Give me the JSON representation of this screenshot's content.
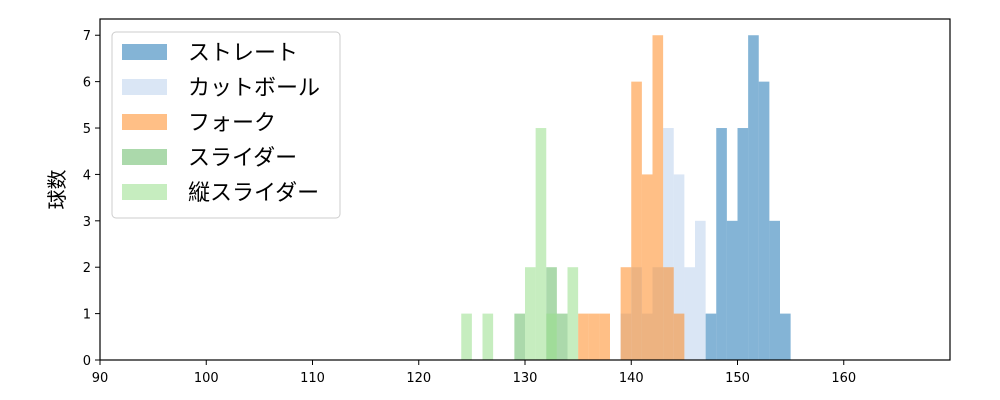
{
  "chart_data": {
    "type": "histogram",
    "ylabel": "球数",
    "xlabel": "",
    "xlim": [
      90,
      170
    ],
    "ylim": [
      0,
      7.35
    ],
    "xticks": [
      90,
      100,
      110,
      120,
      130,
      140,
      150,
      160
    ],
    "yticks": [
      0,
      1,
      2,
      3,
      4,
      5,
      6,
      7
    ],
    "grid": false,
    "legend_position": "top-left",
    "series": [
      {
        "name": "ストレート",
        "color": "#1f77b4",
        "opacity": 0.55,
        "bins": [
          [
            147,
            1
          ],
          [
            148,
            5
          ],
          [
            149,
            3
          ],
          [
            150,
            5
          ],
          [
            151,
            7
          ],
          [
            152,
            6
          ],
          [
            153,
            3
          ],
          [
            154,
            1
          ]
        ]
      },
      {
        "name": "カットボール",
        "color": "#aec7e8",
        "opacity": 0.45,
        "bins": [
          [
            139,
            1
          ],
          [
            140,
            2
          ],
          [
            141,
            1
          ],
          [
            142,
            2
          ],
          [
            143,
            5
          ],
          [
            144,
            4
          ],
          [
            145,
            2
          ],
          [
            146,
            3
          ]
        ]
      },
      {
        "name": "フォーク",
        "color": "#ff7f0e",
        "opacity": 0.5,
        "bins": [
          [
            135,
            1
          ],
          [
            136,
            1
          ],
          [
            137,
            1
          ],
          [
            138,
            0
          ],
          [
            139,
            2
          ],
          [
            140,
            6
          ],
          [
            141,
            4
          ],
          [
            142,
            7
          ],
          [
            143,
            2
          ],
          [
            144,
            1
          ]
        ]
      },
      {
        "name": "スライダー",
        "color": "#2ca02c",
        "opacity": 0.4,
        "bins": [
          [
            129,
            1
          ],
          [
            130,
            0
          ],
          [
            131,
            0
          ],
          [
            132,
            2
          ],
          [
            133,
            1
          ]
        ]
      },
      {
        "name": "縦スライダー",
        "color": "#98df8a",
        "opacity": 0.55,
        "bins": [
          [
            124,
            1
          ],
          [
            126,
            1
          ],
          [
            130,
            2
          ],
          [
            131,
            5
          ],
          [
            132,
            1
          ],
          [
            134,
            2
          ],
          [
            135,
            0
          ]
        ]
      }
    ]
  }
}
